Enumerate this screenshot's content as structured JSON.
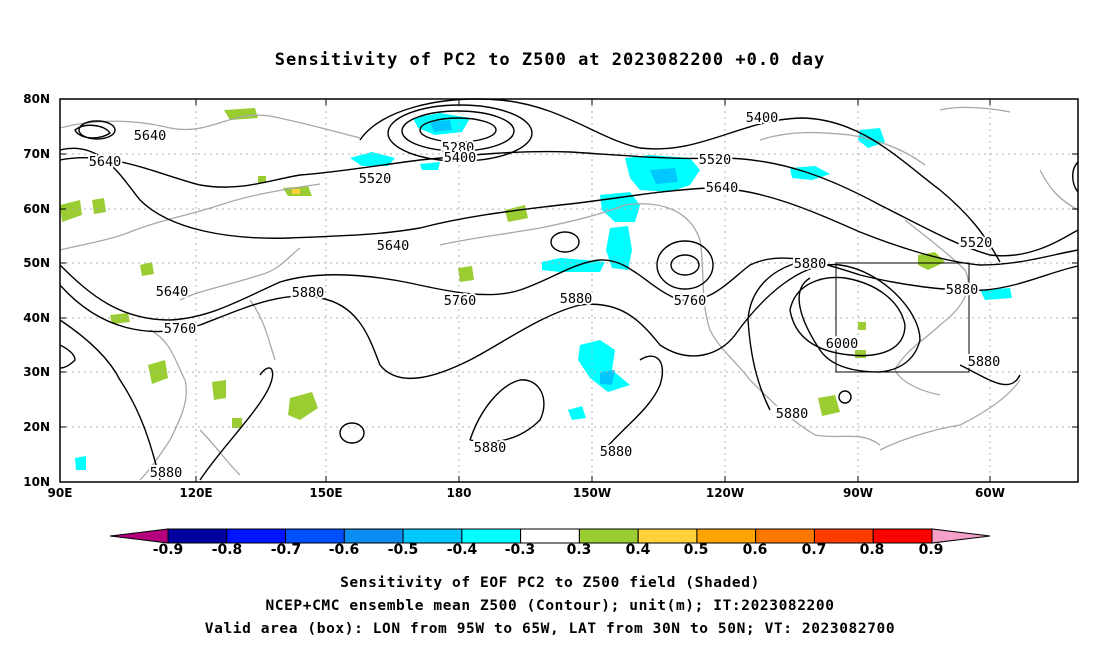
{
  "title": "Sensitivity of PC2 to Z500 at 2023082200 +0.0 day",
  "lat_labels": [
    "80N",
    "70N",
    "60N",
    "50N",
    "40N",
    "30N",
    "20N",
    "10N"
  ],
  "lon_labels": [
    "90E",
    "120E",
    "150E",
    "180",
    "150W",
    "120W",
    "90W",
    "60W"
  ],
  "colorbar": {
    "labels": [
      "-0.9",
      "-0.8",
      "-0.7",
      "-0.6",
      "-0.5",
      "-0.4",
      "-0.3",
      "0.3",
      "0.4",
      "0.5",
      "0.6",
      "0.7",
      "0.8",
      "0.9"
    ],
    "colors": [
      "#b4007d",
      "#0000a0",
      "#0014ff",
      "#0050ff",
      "#0a8cf0",
      "#00c8ff",
      "#00ffff",
      "#ffffff",
      "#9acd32",
      "#ffd23c",
      "#ffa500",
      "#ff7800",
      "#ff3c00",
      "#ff0000",
      "#f5a0c8"
    ]
  },
  "contour_labels": [
    "5640",
    "5640",
    "5280",
    "5400",
    "5400",
    "5520",
    "5520",
    "5640",
    "5640",
    "5760",
    "5880",
    "5880",
    "5760",
    "5640",
    "5520",
    "5880",
    "5760",
    "5880",
    "6000",
    "5880",
    "5880",
    "5880",
    "5880",
    "5880"
  ],
  "valid_box": {
    "lon_west": "95W",
    "lon_east": "65W",
    "lat_south": "30N",
    "lat_north": "50N"
  },
  "captions": [
    "Sensitivity of EOF PC2 to Z500 field (Shaded)",
    "NCEP+CMC ensemble mean Z500 (Contour); unit(m); IT:2023082200",
    "Valid area (box): LON from 95W to 65W, LAT from 30N to 50N; VT: 2023082700"
  ]
}
